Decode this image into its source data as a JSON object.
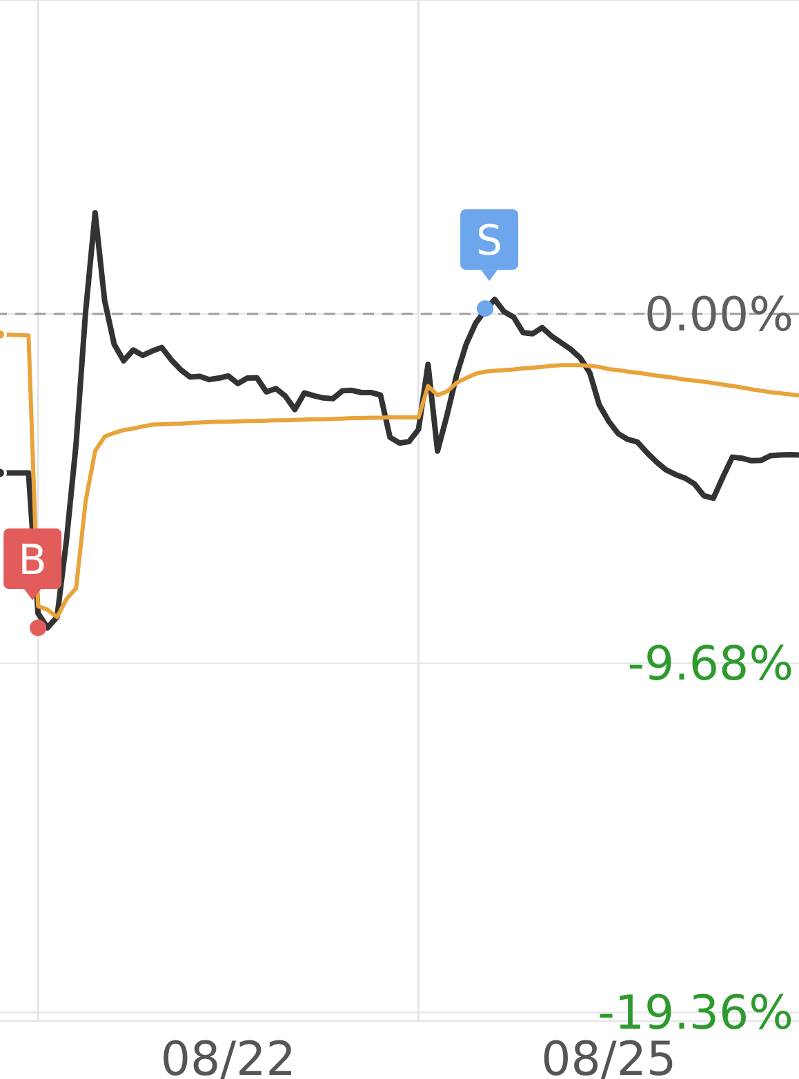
{
  "chart_data": {
    "type": "line",
    "categories": [
      null,
      null,
      null,
      null,
      null,
      null,
      null,
      null,
      null,
      null,
      null,
      null,
      null,
      null,
      null,
      null,
      null,
      null,
      null,
      null,
      null,
      null,
      null,
      null,
      "08/22",
      null,
      null,
      null,
      null,
      null,
      null,
      null,
      null,
      null,
      null,
      null,
      null,
      null,
      null,
      null,
      null,
      null,
      null,
      null,
      null,
      null,
      null,
      null,
      null,
      null,
      null,
      null,
      null,
      null,
      null,
      null,
      null,
      null,
      null,
      null,
      null,
      null,
      null,
      null,
      "08/25",
      null,
      null,
      null,
      null,
      null,
      null,
      null,
      null,
      null,
      null,
      null,
      null,
      null,
      null,
      null,
      null,
      null,
      null,
      null,
      null
    ],
    "ylim": [
      -19.6,
      8.7
    ],
    "yticks": [
      {
        "value": 0,
        "label": "0.00%"
      },
      {
        "value": -9.68,
        "label": "-9.68%"
      },
      {
        "value": -19.36,
        "label": "-19.36%"
      }
    ],
    "grid": true,
    "marker": "none",
    "line_style": "solid",
    "ref_lines": [
      {
        "axis": "y",
        "value": 0,
        "color": "#9e9e9e",
        "line_style": "dashed"
      }
    ],
    "annotations": [
      "B",
      "S"
    ],
    "series": [
      {
        "color": "#333333",
        "values": [
          -4.41,
          -4.41,
          -4.41,
          -4.41,
          -8.3,
          -8.7,
          -8.4,
          -6.25,
          -3.6,
          0.06,
          2.8,
          0.37,
          -0.84,
          -1.3,
          -1.0,
          -1.15,
          -1.03,
          -0.93,
          -1.27,
          -1.55,
          -1.75,
          -1.73,
          -1.82,
          -1.78,
          -1.72,
          -1.93,
          -1.78,
          -1.77,
          -2.16,
          -2.07,
          -2.28,
          -2.65,
          -2.19,
          -2.27,
          -2.33,
          -2.35,
          -2.13,
          -2.12,
          -2.18,
          -2.18,
          -2.25,
          -3.42,
          -3.58,
          -3.54,
          -3.2,
          -1.4,
          -3.8,
          -2.8,
          -1.7,
          -0.85,
          -0.26,
          0.1,
          0.4,
          0.06,
          -0.09,
          -0.52,
          -0.55,
          -0.38,
          -0.62,
          -0.8,
          -0.98,
          -1.22,
          -1.63,
          -2.52,
          -2.98,
          -3.32,
          -3.48,
          -3.55,
          -3.84,
          -4.1,
          -4.32,
          -4.45,
          -4.55,
          -4.71,
          -5.04,
          -5.11,
          -4.52,
          -3.97,
          -4.0,
          -4.07,
          -4.06,
          -3.93,
          -3.91,
          -3.9,
          -3.91
        ]
      },
      {
        "color": "#e8a33a",
        "values": [
          -0.57,
          -0.58,
          -0.59,
          -0.6,
          -8.1,
          -8.2,
          -8.4,
          -7.9,
          -7.6,
          -5.2,
          -3.8,
          -3.4,
          -3.3,
          -3.22,
          -3.18,
          -3.12,
          -3.07,
          -3.06,
          -3.05,
          -3.04,
          -3.02,
          -3.01,
          -3.0,
          -2.99,
          -2.99,
          -2.98,
          -2.97,
          -2.97,
          -2.96,
          -2.95,
          -2.95,
          -2.94,
          -2.93,
          -2.92,
          -2.92,
          -2.91,
          -2.9,
          -2.89,
          -2.89,
          -2.88,
          -2.88,
          -2.87,
          -2.87,
          -2.87,
          -2.87,
          -2.0,
          -2.25,
          -2.15,
          -1.91,
          -1.78,
          -1.66,
          -1.6,
          -1.58,
          -1.56,
          -1.54,
          -1.51,
          -1.49,
          -1.47,
          -1.44,
          -1.42,
          -1.42,
          -1.42,
          -1.44,
          -1.47,
          -1.53,
          -1.56,
          -1.6,
          -1.63,
          -1.67,
          -1.71,
          -1.74,
          -1.78,
          -1.82,
          -1.85,
          -1.88,
          -1.92,
          -1.96,
          -2.0,
          -2.04,
          -2.09,
          -2.13,
          -2.17,
          -2.2,
          -2.23,
          -2.26
        ]
      },
      {
        "type": "scatter",
        "marker": "circle",
        "colors": [
          null,
          null,
          null,
          null,
          "#e25c5c",
          null,
          null,
          null,
          null,
          null,
          null,
          null,
          null,
          null,
          null,
          null,
          null,
          null,
          null,
          null,
          null,
          null,
          null,
          null,
          null,
          null,
          null,
          null,
          null,
          null,
          null,
          null,
          null,
          null,
          null,
          null,
          null,
          null,
          null,
          null,
          null,
          null,
          null,
          null,
          null,
          null,
          null,
          null,
          null,
          null,
          null,
          "#6ea6ee",
          null,
          null,
          null,
          null,
          null,
          null,
          null,
          null,
          null,
          null,
          null,
          null,
          null,
          null,
          null,
          null,
          null,
          null,
          null,
          null,
          null,
          null,
          null,
          null,
          null,
          null,
          null,
          null,
          null,
          null,
          null,
          null,
          null
        ],
        "values": [
          null,
          null,
          null,
          null,
          -8.7,
          null,
          null,
          null,
          null,
          null,
          null,
          null,
          null,
          null,
          null,
          null,
          null,
          null,
          null,
          null,
          null,
          null,
          null,
          null,
          null,
          null,
          null,
          null,
          null,
          null,
          null,
          null,
          null,
          null,
          null,
          null,
          null,
          null,
          null,
          null,
          null,
          null,
          null,
          null,
          null,
          null,
          null,
          null,
          null,
          null,
          null,
          0.15,
          null,
          null,
          null,
          null,
          null,
          null,
          null,
          null,
          null,
          null,
          null,
          null,
          null,
          null,
          null,
          null,
          null,
          null,
          null,
          null,
          null,
          null,
          null,
          null,
          null,
          null,
          null,
          null,
          null,
          null,
          null,
          null,
          null
        ]
      }
    ]
  }
}
